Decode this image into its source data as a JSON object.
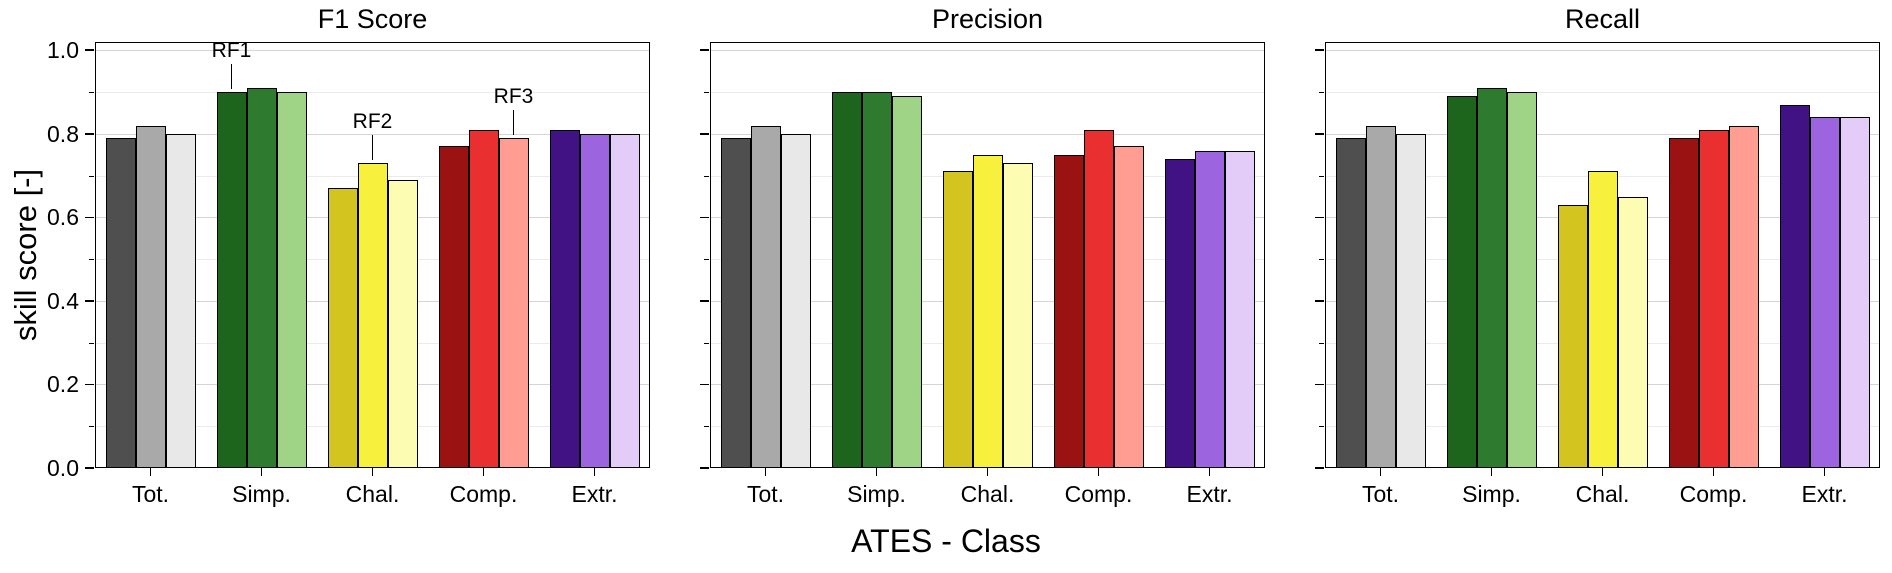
{
  "figure": {
    "ylabel": "skill score [-]",
    "xlabel": "ATES - Class",
    "ytick_labels": [
      "0.0",
      "0.2",
      "0.4",
      "0.6",
      "0.8",
      "1.0"
    ],
    "background": "#ffffff",
    "bar_edge_color": "#000000",
    "category_colors": [
      [
        "#4f4f4f",
        "#a9a9a9",
        "#e8e8e8"
      ],
      [
        "#1d641d",
        "#2e7a2e",
        "#9fd486"
      ],
      [
        "#d4c41f",
        "#f7f13e",
        "#fdfcb3"
      ],
      [
        "#9a1212",
        "#e92f2f",
        "#ff9d93"
      ],
      [
        "#411283",
        "#9d64e0",
        "#e3cdf8"
      ]
    ]
  },
  "chart_data": [
    {
      "type": "bar",
      "title": "F1 Score",
      "xlabel": "ATES - Class",
      "ylabel": "skill score [-]",
      "categories": [
        "Tot.",
        "Simp.",
        "Chal.",
        "Comp.",
        "Extr."
      ],
      "series": [
        {
          "name": "RF1",
          "values": [
            0.79,
            0.9,
            0.67,
            0.77,
            0.81
          ]
        },
        {
          "name": "RF2",
          "values": [
            0.82,
            0.91,
            0.73,
            0.81,
            0.8
          ]
        },
        {
          "name": "RF3",
          "values": [
            0.8,
            0.9,
            0.69,
            0.79,
            0.8
          ]
        }
      ],
      "ylim": [
        0,
        1.02
      ],
      "yticks": [
        0,
        0.2,
        0.4,
        0.6,
        0.8,
        1.0
      ],
      "grid": true,
      "legend": false,
      "annotations": [
        {
          "text": "RF1",
          "group": 1,
          "bar": 0
        },
        {
          "text": "RF2",
          "group": 2,
          "bar": 1
        },
        {
          "text": "RF3",
          "group": 3,
          "bar": 2
        }
      ]
    },
    {
      "type": "bar",
      "title": "Precision",
      "xlabel": "ATES - Class",
      "ylabel": "skill score [-]",
      "categories": [
        "Tot.",
        "Simp.",
        "Chal.",
        "Comp.",
        "Extr."
      ],
      "series": [
        {
          "name": "RF1",
          "values": [
            0.79,
            0.9,
            0.71,
            0.75,
            0.74
          ]
        },
        {
          "name": "RF2",
          "values": [
            0.82,
            0.9,
            0.75,
            0.81,
            0.76
          ]
        },
        {
          "name": "RF3",
          "values": [
            0.8,
            0.89,
            0.73,
            0.77,
            0.76
          ]
        }
      ],
      "ylim": [
        0,
        1.02
      ],
      "yticks": [
        0,
        0.2,
        0.4,
        0.6,
        0.8,
        1.0
      ],
      "grid": true,
      "legend": false,
      "annotations": []
    },
    {
      "type": "bar",
      "title": "Recall",
      "xlabel": "ATES - Class",
      "ylabel": "skill score [-]",
      "categories": [
        "Tot.",
        "Simp.",
        "Chal.",
        "Comp.",
        "Extr."
      ],
      "series": [
        {
          "name": "RF1",
          "values": [
            0.79,
            0.89,
            0.63,
            0.79,
            0.87
          ]
        },
        {
          "name": "RF2",
          "values": [
            0.82,
            0.91,
            0.71,
            0.81,
            0.84
          ]
        },
        {
          "name": "RF3",
          "values": [
            0.8,
            0.9,
            0.65,
            0.82,
            0.84
          ]
        }
      ],
      "ylim": [
        0,
        1.02
      ],
      "yticks": [
        0,
        0.2,
        0.4,
        0.6,
        0.8,
        1.0
      ],
      "grid": true,
      "legend": false,
      "annotations": []
    }
  ]
}
